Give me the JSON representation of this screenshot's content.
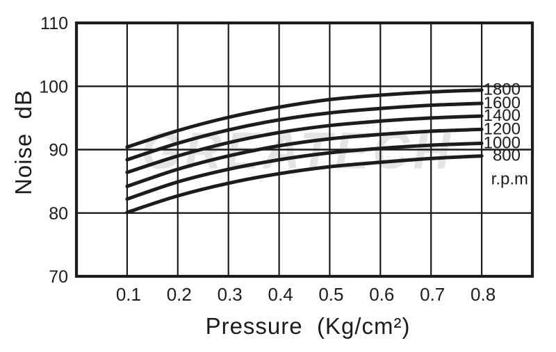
{
  "page": {
    "background": "#ffffff",
    "line_color": "#1c1c1c"
  },
  "watermark": {
    "text": "GREATECH",
    "color": "#e4e4e4"
  },
  "chart_data": {
    "type": "line",
    "title": "",
    "xlabel": "Pressure  (Kg/cm²)",
    "ylabel": "Noise  dB",
    "xlim": [
      0,
      0.9
    ],
    "ylim": [
      70,
      110
    ],
    "grid": true,
    "legend_position": "right-inside",
    "x": [
      0.1,
      0.2,
      0.3,
      0.4,
      0.5,
      0.6,
      0.7,
      0.8
    ],
    "x_tick_labels": [
      "0.1",
      "0.2",
      "0.3",
      "0.4",
      "0.5",
      "0.6",
      "0.7",
      "0.8"
    ],
    "y_ticks": [
      70,
      80,
      90,
      100,
      110
    ],
    "y_tick_labels": [
      "70",
      "80",
      "90",
      "100",
      "110"
    ],
    "series_unit_label": "r.p.m",
    "series": [
      {
        "name": "1800",
        "values": [
          90.4,
          93.0,
          95.1,
          96.7,
          97.9,
          98.6,
          99.1,
          99.4
        ]
      },
      {
        "name": "1600",
        "values": [
          88.4,
          91.0,
          93.1,
          94.7,
          95.8,
          96.5,
          97.0,
          97.3
        ]
      },
      {
        "name": "1400",
        "values": [
          86.4,
          89.0,
          91.1,
          92.7,
          93.8,
          94.5,
          95.0,
          95.3
        ]
      },
      {
        "name": "1200",
        "values": [
          84.2,
          86.9,
          89.0,
          90.6,
          91.7,
          92.4,
          92.9,
          93.2
        ]
      },
      {
        "name": "1000",
        "values": [
          82.2,
          84.9,
          86.9,
          88.4,
          89.5,
          90.2,
          90.7,
          91.0
        ]
      },
      {
        "name": "800",
        "values": [
          80.1,
          82.7,
          84.7,
          86.2,
          87.3,
          88.0,
          88.6,
          89.0
        ]
      }
    ]
  }
}
